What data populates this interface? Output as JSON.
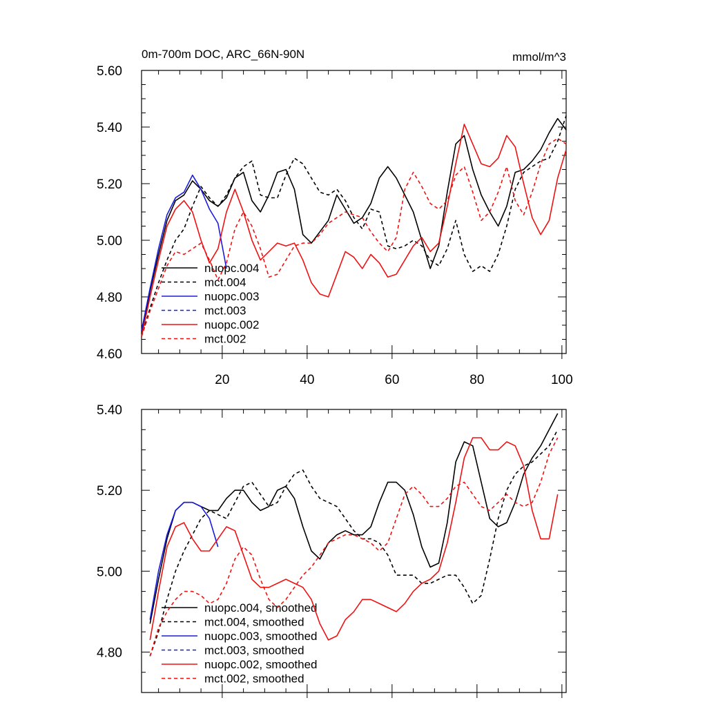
{
  "chart_data": [
    {
      "type": "line",
      "title": "0m-700m DOC, ARC_66N-90N",
      "units": "mmol/m^3",
      "xlim": [
        1,
        101
      ],
      "ylim": [
        4.6,
        5.6
      ],
      "xticks": [
        20,
        40,
        60,
        80,
        100
      ],
      "xtick_labels": [
        "20",
        "40",
        "60",
        "80",
        "100"
      ],
      "yticks": [
        4.6,
        4.8,
        5.0,
        5.2,
        5.4,
        5.6
      ],
      "ytick_labels": [
        "4.60",
        "4.80",
        "5.00",
        "5.20",
        "5.40",
        "5.60"
      ],
      "series": [
        {
          "name": "nuopc.004",
          "color": "#000000",
          "dash": "solid",
          "x": [
            1,
            3,
            5,
            7,
            9,
            11,
            13,
            15,
            17,
            19,
            21,
            23,
            25,
            27,
            29,
            31,
            33,
            35,
            37,
            39,
            41,
            43,
            45,
            47,
            49,
            51,
            53,
            55,
            57,
            59,
            61,
            63,
            65,
            67,
            69,
            71,
            73,
            75,
            77,
            79,
            81,
            83,
            85,
            87,
            89,
            91,
            93,
            95,
            97,
            99,
            101
          ],
          "y": [
            4.67,
            4.82,
            4.95,
            5.07,
            5.14,
            5.16,
            5.21,
            5.18,
            5.14,
            5.12,
            5.15,
            5.22,
            5.24,
            5.14,
            5.1,
            5.16,
            5.24,
            5.25,
            5.18,
            5.02,
            4.99,
            5.03,
            5.07,
            5.16,
            5.11,
            5.06,
            5.08,
            5.13,
            5.22,
            5.26,
            5.22,
            5.16,
            5.1,
            5.0,
            4.9,
            4.98,
            5.17,
            5.34,
            5.37,
            5.25,
            5.16,
            5.1,
            5.05,
            5.12,
            5.24,
            5.25,
            5.28,
            5.32,
            5.38,
            5.43,
            5.39
          ]
        },
        {
          "name": "mct.004",
          "color": "#000000",
          "dash": "dashed",
          "x": [
            1,
            3,
            5,
            7,
            9,
            11,
            13,
            15,
            17,
            19,
            21,
            23,
            25,
            27,
            29,
            31,
            33,
            35,
            37,
            39,
            41,
            43,
            45,
            47,
            49,
            51,
            53,
            55,
            57,
            59,
            61,
            63,
            65,
            67,
            69,
            71,
            73,
            75,
            77,
            79,
            81,
            83,
            85,
            87,
            89,
            91,
            93,
            95,
            97,
            99,
            101
          ],
          "y": [
            4.66,
            4.76,
            4.85,
            4.93,
            5.0,
            5.04,
            5.12,
            5.19,
            5.15,
            5.12,
            5.16,
            5.22,
            5.26,
            5.28,
            5.16,
            5.15,
            5.15,
            5.23,
            5.29,
            5.27,
            5.22,
            5.17,
            5.16,
            5.18,
            5.14,
            5.08,
            5.04,
            5.11,
            5.1,
            4.98,
            4.97,
            4.98,
            5.0,
            4.98,
            4.93,
            4.91,
            4.97,
            5.07,
            4.95,
            4.89,
            4.91,
            4.89,
            4.95,
            5.05,
            5.18,
            5.24,
            5.26,
            5.28,
            5.29,
            5.35,
            5.44
          ]
        },
        {
          "name": "nuopc.003",
          "color": "#1a1adc",
          "dash": "solid",
          "x": [
            1,
            3,
            5,
            7,
            9,
            11,
            13,
            15,
            17,
            19,
            21
          ],
          "y": [
            4.68,
            4.83,
            4.97,
            5.09,
            5.15,
            5.17,
            5.23,
            5.18,
            5.11,
            5.06,
            4.9
          ]
        },
        {
          "name": "mct.003",
          "color": "#1a1adc",
          "dash": "dashed",
          "x": [],
          "y": []
        },
        {
          "name": "nuopc.002",
          "color": "#ee1111",
          "dash": "solid",
          "x": [
            1,
            3,
            5,
            7,
            9,
            11,
            13,
            15,
            17,
            19,
            21,
            23,
            25,
            27,
            29,
            31,
            33,
            35,
            37,
            39,
            41,
            43,
            45,
            47,
            49,
            51,
            53,
            55,
            57,
            59,
            61,
            63,
            65,
            67,
            69,
            71,
            73,
            75,
            77,
            79,
            81,
            83,
            85,
            87,
            89,
            91,
            93,
            95,
            97,
            99,
            101
          ],
          "y": [
            4.66,
            4.8,
            4.93,
            5.05,
            5.11,
            5.14,
            5.1,
            5.0,
            4.92,
            4.97,
            5.1,
            5.18,
            5.1,
            5.0,
            4.93,
            4.96,
            4.99,
            4.98,
            4.99,
            4.93,
            4.85,
            4.81,
            4.8,
            4.88,
            4.96,
            4.94,
            4.9,
            4.95,
            4.92,
            4.87,
            4.88,
            4.93,
            4.98,
            5.01,
            4.96,
            4.99,
            5.12,
            5.27,
            5.41,
            5.34,
            5.27,
            5.26,
            5.29,
            5.37,
            5.33,
            5.2,
            5.08,
            5.02,
            5.07,
            5.22,
            5.32
          ]
        },
        {
          "name": "mct.002",
          "color": "#ee1111",
          "dash": "dashed",
          "x": [
            1,
            3,
            5,
            7,
            9,
            11,
            13,
            15,
            17,
            19,
            21,
            23,
            25,
            27,
            29,
            31,
            33,
            35,
            37,
            39,
            41,
            43,
            45,
            47,
            49,
            51,
            53,
            55,
            57,
            59,
            61,
            63,
            65,
            67,
            69,
            71,
            73,
            75,
            77,
            79,
            81,
            83,
            85,
            87,
            89,
            91,
            93,
            95,
            97,
            99,
            101
          ],
          "y": [
            4.66,
            4.75,
            4.83,
            4.91,
            4.96,
            4.95,
            4.97,
            4.99,
            4.93,
            4.86,
            4.92,
            5.04,
            5.1,
            5.05,
            4.97,
            4.87,
            4.88,
            4.93,
            4.98,
            4.99,
            4.99,
            5.02,
            5.06,
            5.08,
            5.1,
            5.09,
            5.08,
            5.03,
            4.99,
            4.96,
            5.01,
            5.18,
            5.24,
            5.19,
            5.13,
            5.11,
            5.14,
            5.23,
            5.26,
            5.17,
            5.07,
            5.1,
            5.17,
            5.26,
            5.14,
            5.09,
            5.17,
            5.27,
            5.34,
            5.36,
            5.34
          ]
        }
      ],
      "legend_position": "left"
    },
    {
      "type": "line",
      "title": "",
      "xlim": [
        1,
        101
      ],
      "ylim": [
        4.7,
        5.4
      ],
      "xticks": [
        20,
        40,
        60,
        80,
        100
      ],
      "xtick_labels": [],
      "yticks": [
        4.8,
        5.0,
        5.2,
        5.4
      ],
      "ytick_labels": [
        "4.80",
        "5.00",
        "5.20",
        "5.40"
      ],
      "series": [
        {
          "name": "nuopc.004, smoothed",
          "color": "#000000",
          "dash": "solid",
          "x": [
            3,
            5,
            7,
            9,
            11,
            13,
            15,
            17,
            19,
            21,
            23,
            25,
            27,
            29,
            31,
            33,
            35,
            37,
            39,
            41,
            43,
            45,
            47,
            49,
            51,
            53,
            55,
            57,
            59,
            61,
            63,
            65,
            67,
            69,
            71,
            73,
            75,
            77,
            79,
            81,
            83,
            85,
            87,
            89,
            91,
            93,
            95,
            97,
            99
          ],
          "y": [
            4.87,
            4.98,
            5.08,
            5.15,
            5.17,
            5.17,
            5.16,
            5.15,
            5.15,
            5.18,
            5.2,
            5.2,
            5.17,
            5.15,
            5.16,
            5.2,
            5.21,
            5.18,
            5.11,
            5.05,
            5.03,
            5.07,
            5.09,
            5.1,
            5.09,
            5.09,
            5.11,
            5.17,
            5.22,
            5.22,
            5.2,
            5.14,
            5.06,
            5.01,
            5.02,
            5.12,
            5.27,
            5.32,
            5.31,
            5.22,
            5.13,
            5.11,
            5.12,
            5.17,
            5.24,
            5.28,
            5.31,
            5.35,
            5.39
          ]
        },
        {
          "name": "mct.004, smoothed",
          "color": "#000000",
          "dash": "dashed",
          "x": [
            3,
            5,
            7,
            9,
            11,
            13,
            15,
            17,
            19,
            21,
            23,
            25,
            27,
            29,
            31,
            33,
            35,
            37,
            39,
            41,
            43,
            45,
            47,
            49,
            51,
            53,
            55,
            57,
            59,
            61,
            63,
            65,
            67,
            69,
            71,
            73,
            75,
            77,
            79,
            81,
            83,
            85,
            87,
            89,
            91,
            93,
            95,
            97,
            99
          ],
          "y": [
            4.79,
            4.85,
            4.93,
            5.0,
            5.05,
            5.09,
            5.13,
            5.15,
            5.14,
            5.13,
            5.17,
            5.21,
            5.22,
            5.19,
            5.16,
            5.17,
            5.21,
            5.24,
            5.25,
            5.21,
            5.18,
            5.17,
            5.16,
            5.13,
            5.1,
            5.08,
            5.08,
            5.07,
            5.04,
            4.99,
            4.99,
            4.99,
            4.97,
            4.97,
            4.98,
            4.99,
            4.99,
            4.96,
            4.92,
            4.94,
            5.03,
            5.13,
            5.2,
            5.24,
            5.26,
            5.27,
            5.29,
            5.31,
            5.35
          ]
        },
        {
          "name": "nuopc.003, smoothed",
          "color": "#1a1adc",
          "dash": "solid",
          "x": [
            3,
            5,
            7,
            9,
            11,
            13,
            15,
            17,
            19
          ],
          "y": [
            4.88,
            5.0,
            5.09,
            5.15,
            5.17,
            5.17,
            5.16,
            5.13,
            5.06
          ]
        },
        {
          "name": "mct.003, smoothed",
          "color": "#1a1adc",
          "dash": "dashed",
          "x": [],
          "y": []
        },
        {
          "name": "nuopc.002, smoothed",
          "color": "#ee1111",
          "dash": "solid",
          "x": [
            3,
            5,
            7,
            9,
            11,
            13,
            15,
            17,
            19,
            21,
            23,
            25,
            27,
            29,
            31,
            33,
            35,
            37,
            39,
            41,
            43,
            45,
            47,
            49,
            51,
            53,
            55,
            57,
            59,
            61,
            63,
            65,
            67,
            69,
            71,
            73,
            75,
            77,
            79,
            81,
            83,
            85,
            87,
            89,
            91,
            93,
            95,
            97,
            99
          ],
          "y": [
            4.83,
            4.95,
            5.06,
            5.11,
            5.12,
            5.08,
            5.05,
            5.05,
            5.08,
            5.11,
            5.1,
            5.04,
            4.98,
            4.96,
            4.96,
            4.97,
            4.98,
            4.97,
            4.96,
            4.93,
            4.87,
            4.83,
            4.84,
            4.88,
            4.9,
            4.93,
            4.93,
            4.92,
            4.91,
            4.9,
            4.92,
            4.95,
            4.97,
            4.98,
            5.0,
            5.07,
            5.17,
            5.28,
            5.33,
            5.33,
            5.3,
            5.3,
            5.32,
            5.31,
            5.26,
            5.15,
            5.08,
            5.08,
            5.19
          ]
        },
        {
          "name": "mct.002, smoothed",
          "color": "#ee1111",
          "dash": "dashed",
          "x": [
            3,
            5,
            7,
            9,
            11,
            13,
            15,
            17,
            19,
            21,
            23,
            25,
            27,
            29,
            31,
            33,
            35,
            37,
            39,
            41,
            43,
            45,
            47,
            49,
            51,
            53,
            55,
            57,
            59,
            61,
            63,
            65,
            67,
            69,
            71,
            73,
            75,
            77,
            79,
            81,
            83,
            85,
            87,
            89,
            91,
            93,
            95,
            97,
            99
          ],
          "y": [
            4.79,
            4.86,
            4.9,
            4.93,
            4.95,
            4.95,
            4.94,
            4.92,
            4.93,
            4.97,
            5.03,
            5.06,
            5.04,
            4.98,
            4.93,
            4.91,
            4.93,
            4.96,
            4.99,
            5.01,
            5.04,
            5.07,
            5.08,
            5.09,
            5.09,
            5.08,
            5.07,
            5.05,
            5.07,
            5.13,
            5.19,
            5.21,
            5.19,
            5.16,
            5.16,
            5.18,
            5.21,
            5.22,
            5.19,
            5.16,
            5.15,
            5.17,
            5.19,
            5.17,
            5.16,
            5.17,
            5.22,
            5.29,
            5.33
          ]
        }
      ],
      "legend_position": "bottom-left"
    }
  ]
}
